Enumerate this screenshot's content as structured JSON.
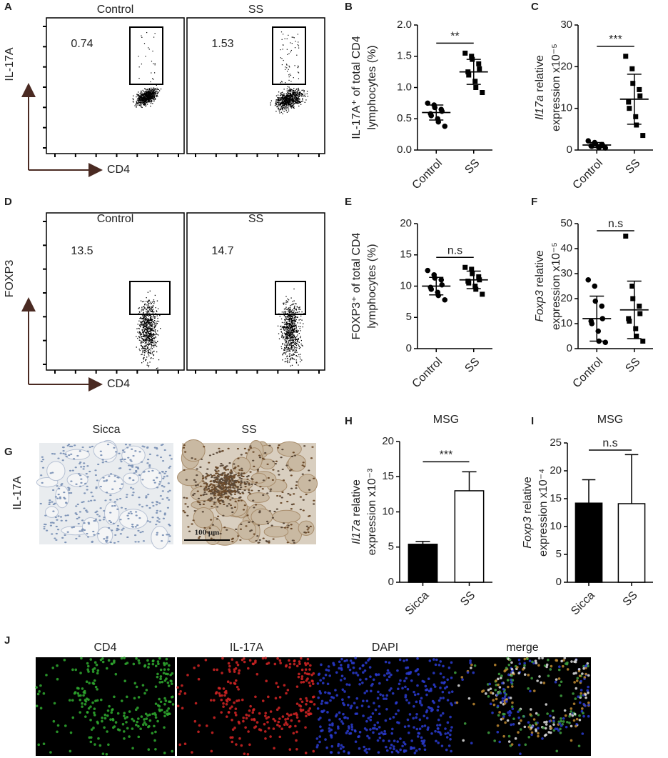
{
  "flow_panels": [
    {
      "panel": "A",
      "ylabel": "IL-17A",
      "xlabel": "CD4",
      "plots": [
        {
          "title": "Control",
          "gate_value": 0.74
        },
        {
          "title": "SS",
          "gate_value": 1.53
        }
      ]
    },
    {
      "panel": "D",
      "ylabel": "FOXP3",
      "xlabel": "CD4",
      "plots": [
        {
          "title": "Control",
          "gate_value": 13.5
        },
        {
          "title": "SS",
          "gate_value": 14.7
        }
      ]
    }
  ],
  "ihc_panel": {
    "panel": "G",
    "ylabel": "IL-17A",
    "titles": [
      "Sicca",
      "SS"
    ],
    "scale_bar": "100 μm"
  },
  "if_panel": {
    "panel": "J",
    "titles": [
      "CD4",
      "IL-17A",
      "DAPI",
      "merge"
    ]
  },
  "chart_data": [
    {
      "type": "strip",
      "panel": "B",
      "categories": [
        "Control",
        "SS"
      ],
      "ylabel": [
        [
          {
            "text": "IL-17A⁺ of total CD4"
          }
        ],
        [
          {
            "text": "lymphocytes (%)"
          }
        ]
      ],
      "ylim": [
        0,
        2
      ],
      "yticks": [
        {
          "value": 0,
          "label": "0.0"
        },
        0.5,
        {
          "value": 1,
          "label": "1.0"
        },
        1.5,
        {
          "value": 2,
          "label": "2.0"
        }
      ],
      "significance": "**",
      "groups": [
        {
          "marker": "circle",
          "values": [
            0.75,
            0.72,
            0.68,
            0.65,
            0.62,
            0.58,
            0.55,
            0.5,
            0.45,
            0.38
          ],
          "mean": 0.6,
          "sd": 0.12
        },
        {
          "marker": "square",
          "values": [
            1.55,
            1.5,
            1.45,
            1.38,
            1.3,
            1.25,
            1.2,
            1.1,
            1.0,
            0.92
          ],
          "mean": 1.25,
          "sd": 0.2
        }
      ]
    },
    {
      "type": "strip",
      "panel": "C",
      "categories": [
        "Control",
        "SS"
      ],
      "ylabel": [
        [
          {
            "text": "Il17a",
            "italic": true
          },
          {
            "text": " relative"
          }
        ],
        [
          {
            "text": "expression x10⁻⁵"
          }
        ]
      ],
      "ylim": [
        0,
        30
      ],
      "yticks": [
        0,
        10,
        20,
        30
      ],
      "significance": "***",
      "groups": [
        {
          "marker": "circle",
          "values": [
            2.2,
            1.8,
            1.5,
            1.3,
            1.2,
            1.0,
            0.9,
            0.8,
            0.6,
            0.5
          ],
          "mean": 1.2,
          "sd": 0.6
        },
        {
          "marker": "square",
          "values": [
            22.5,
            19.5,
            16,
            14.5,
            13,
            11.5,
            10,
            8,
            6,
            3.5
          ],
          "mean": 12.2,
          "sd": 6
        }
      ]
    },
    {
      "type": "strip",
      "panel": "E",
      "categories": [
        "Control",
        "SS"
      ],
      "ylabel": [
        [
          {
            "text": "FOXP3⁺ of total CD4"
          }
        ],
        [
          {
            "text": "lymphocytes (%)"
          }
        ]
      ],
      "ylim": [
        0,
        20
      ],
      "yticks": [
        0,
        5,
        10,
        15,
        20
      ],
      "significance": "n.s",
      "groups": [
        {
          "marker": "circle",
          "values": [
            12.5,
            11.8,
            11.3,
            11,
            10.2,
            9.8,
            9.5,
            9,
            8.5,
            7.8
          ],
          "mean": 10,
          "sd": 1.4
        },
        {
          "marker": "square",
          "values": [
            13,
            12.7,
            12,
            11.5,
            11,
            10.8,
            10.5,
            10,
            9.5,
            8.7
          ],
          "mean": 11,
          "sd": 1.4
        }
      ]
    },
    {
      "type": "strip",
      "panel": "F",
      "categories": [
        "Control",
        "SS"
      ],
      "ylabel": [
        [
          {
            "text": "Foxp3",
            "italic": true
          },
          {
            "text": " relative"
          }
        ],
        [
          {
            "text": "expression x10⁻⁵"
          }
        ]
      ],
      "ylim": [
        0,
        50
      ],
      "yticks": [
        0,
        10,
        20,
        30,
        40,
        50
      ],
      "significance": "n.s",
      "groups": [
        {
          "marker": "circle",
          "values": [
            27.5,
            25,
            19,
            17,
            12,
            11,
            10,
            7,
            3,
            2.5
          ],
          "mean": 12,
          "sd": 9
        },
        {
          "marker": "square",
          "values": [
            45,
            25,
            20,
            17,
            14,
            12,
            11,
            8,
            5,
            3
          ],
          "mean": 15.5,
          "sd": 11.5
        }
      ]
    },
    {
      "type": "bar",
      "panel": "H",
      "title": "MSG",
      "categories": [
        "Sicca",
        "SS"
      ],
      "ylabel": [
        [
          {
            "text": "Il17a",
            "italic": true
          },
          {
            "text": " relative"
          }
        ],
        [
          {
            "text": "expression x10⁻³"
          }
        ]
      ],
      "ylim": [
        0,
        20
      ],
      "yticks": [
        0,
        5,
        10,
        15,
        20
      ],
      "significance": "***",
      "values": [
        5.4,
        13
      ],
      "errors": [
        0.4,
        2.7
      ],
      "colors": [
        "#000000",
        "#ffffff"
      ]
    },
    {
      "type": "bar",
      "panel": "I",
      "title": "MSG",
      "categories": [
        "Sicca",
        "SS"
      ],
      "ylabel": [
        [
          {
            "text": "Foxp3",
            "italic": true
          },
          {
            "text": " relative"
          }
        ],
        [
          {
            "text": "expression x10⁻⁴"
          }
        ]
      ],
      "ylim": [
        0,
        25
      ],
      "yticks": [
        0,
        5,
        10,
        15,
        20,
        25
      ],
      "significance": "n.s",
      "values": [
        14.2,
        14.1
      ],
      "errors": [
        4.2,
        8.8
      ],
      "colors": [
        "#000000",
        "#ffffff"
      ]
    }
  ]
}
